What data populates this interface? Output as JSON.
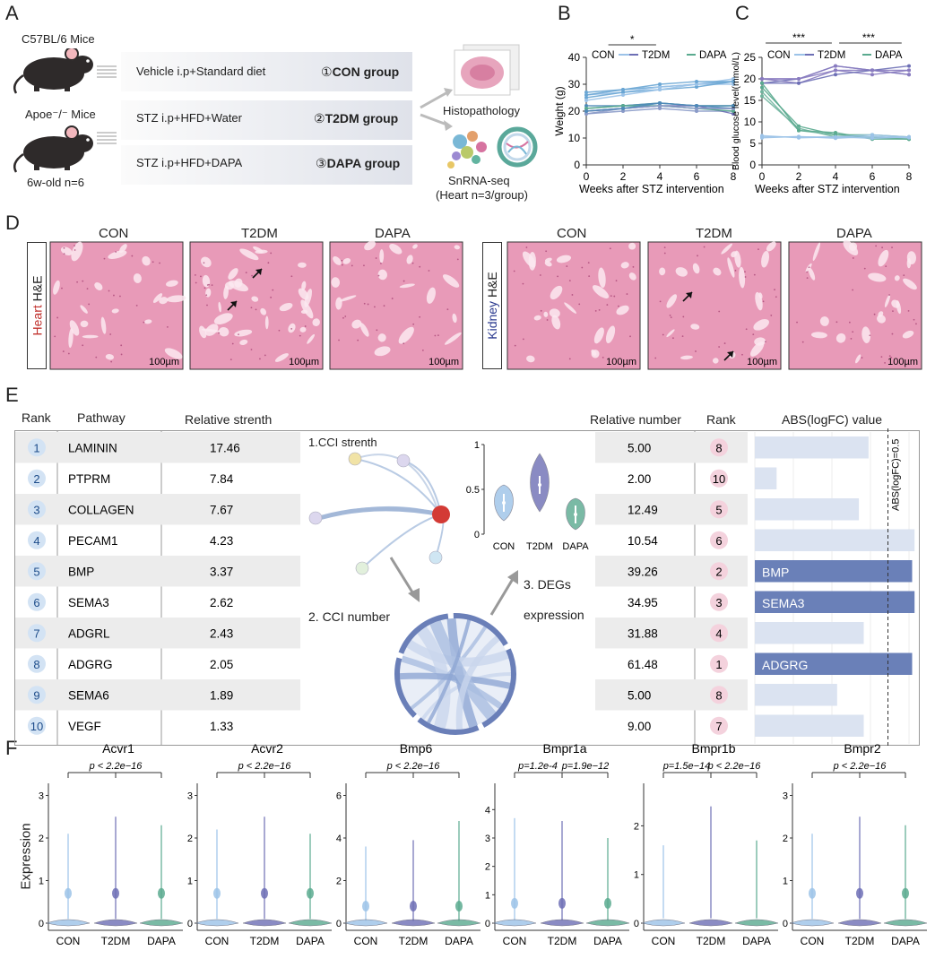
{
  "panels": {
    "A": "A",
    "B": "B",
    "C": "C",
    "D": "D",
    "E": "E",
    "F": "F"
  },
  "panelA": {
    "mouse1": "C57BL/6 Mice",
    "mouse2": "Apoe⁻/⁻ Mice",
    "age": "6w-old n=6",
    "groups": [
      {
        "treatment": "Vehicle i.p+Standard diet",
        "num": "①",
        "name": "CON group"
      },
      {
        "treatment": "STZ i.p+HFD+Water",
        "num": "②",
        "name": "T2DM group"
      },
      {
        "treatment": "STZ i.p+HFD+DAPA",
        "num": "③",
        "name": "DAPA group"
      }
    ],
    "histo": "Histopathology",
    "snrna": "SnRNA-seq",
    "snrna_sub": "(Heart n=3/group)"
  },
  "panelB": {
    "ylabel": "Weight (g)",
    "xlabel": "Weeks after STZ   intervention",
    "star": "*",
    "legend": [
      "CON",
      "T2DM",
      "DAPA"
    ],
    "yticks": [
      "0",
      "10",
      "20",
      "30",
      "40"
    ],
    "xticks": [
      "0",
      "2",
      "4",
      "6",
      "8"
    ]
  },
  "panelC": {
    "ylabel": "Blood glucose level(mmol/L)",
    "xlabel": "Weeks after STZ   intervention",
    "star1": "***",
    "star2": "***",
    "legend": [
      "CON",
      "T2DM",
      "DAPA"
    ],
    "yticks": [
      "0",
      "5",
      "10",
      "15",
      "20",
      "25"
    ],
    "xticks": [
      "0",
      "2",
      "4",
      "6",
      "8"
    ]
  },
  "panelD": {
    "groups": [
      "CON",
      "T2DM",
      "DAPA"
    ],
    "heart_label_red": "Heart",
    "heart_label": " H&E",
    "kidney_label_blue": "Kidney",
    "kidney_label": " H&E",
    "scale": "100µm"
  },
  "panelE": {
    "col_rank": "Rank",
    "col_pathway": "Pathway",
    "col_strength": "Relative strenth",
    "col_number": "Relative number",
    "col_rank2": "Rank",
    "col_abs": "ABS(logFC) value",
    "cci_strength": "1.CCI strenth",
    "cci_number": "2. CCI number",
    "degs": "3. DEGs",
    "degs2": "expression",
    "violin_x": [
      "CON",
      "T2DM",
      "DAPA"
    ],
    "violin_yticks": [
      "0",
      "0.5",
      "1"
    ],
    "threshold_label": "ABS(logFC)=0.5",
    "rows": [
      {
        "rank": "1",
        "pathway": "LAMININ",
        "strength": "17.46",
        "number": "5.00",
        "rank2": "8",
        "abs": 0.47,
        "label": ""
      },
      {
        "rank": "2",
        "pathway": "PTPRM",
        "strength": "7.84",
        "number": "2.00",
        "rank2": "10",
        "abs": 0.09,
        "label": ""
      },
      {
        "rank": "3",
        "pathway": "COLLAGEN",
        "strength": "7.67",
        "number": "12.49",
        "rank2": "5",
        "abs": 0.43,
        "label": ""
      },
      {
        "rank": "4",
        "pathway": "PECAM1",
        "strength": "4.23",
        "number": "10.54",
        "rank2": "6",
        "abs": 0.66,
        "label": ""
      },
      {
        "rank": "5",
        "pathway": "BMP",
        "strength": "3.37",
        "number": "39.26",
        "rank2": "2",
        "abs": 0.65,
        "label": "BMP"
      },
      {
        "rank": "6",
        "pathway": "SEMA3",
        "strength": "2.62",
        "number": "34.95",
        "rank2": "3",
        "abs": 0.66,
        "label": "SEMA3"
      },
      {
        "rank": "7",
        "pathway": "ADGRL",
        "strength": "2.43",
        "number": "31.88",
        "rank2": "4",
        "abs": 0.45,
        "label": ""
      },
      {
        "rank": "8",
        "pathway": "ADGRG",
        "strength": "2.05",
        "number": "61.48",
        "rank2": "1",
        "abs": 0.65,
        "label": "ADGRG"
      },
      {
        "rank": "9",
        "pathway": "SEMA6",
        "strength": "1.89",
        "number": "5.00",
        "rank2": "8",
        "abs": 0.34,
        "label": ""
      },
      {
        "rank": "10",
        "pathway": "VEGF",
        "strength": "1.33",
        "number": "9.00",
        "rank2": "7",
        "abs": 0.45,
        "label": ""
      }
    ]
  },
  "panelF": {
    "ylabel": "Expression",
    "groups": [
      "CON",
      "T2DM",
      "DAPA"
    ],
    "plots": [
      {
        "gene": "Acvr1",
        "p1": "p < 2.2e−16",
        "p2": "",
        "yticks": [
          "0",
          "1",
          "2",
          "3"
        ],
        "ymax": 3.2
      },
      {
        "gene": "Acvr2",
        "p1": "p < 2.2e−16",
        "p2": "",
        "yticks": [
          "0",
          "1",
          "2",
          "3"
        ],
        "ymax": 3.2
      },
      {
        "gene": "Bmp6",
        "p1": "p < 2.2e−16",
        "p2": "",
        "yticks": [
          "0",
          "2",
          "4",
          "6"
        ],
        "ymax": 6.4
      },
      {
        "gene": "Bmpr1a",
        "p1": "p=1.2e-4",
        "p2": "p=1.9e−12",
        "yticks": [
          "0",
          "1",
          "2",
          "3",
          "4"
        ],
        "ymax": 4.8
      },
      {
        "gene": "Bmpr1b",
        "p1": "p=1.5e−14",
        "p2": "p < 2.2e−16",
        "yticks": [
          "0",
          "1",
          "2"
        ],
        "ymax": 2.8
      },
      {
        "gene": "Bmpr2",
        "p1": "p < 2.2e−16",
        "p2": "",
        "yticks": [
          "0",
          "1",
          "2",
          "3"
        ],
        "ymax": 3.2
      }
    ]
  },
  "colors": {
    "con": "#9cc3e8",
    "t2dm": "#6d6fb5",
    "dapa": "#5aaa8f",
    "bar_light": "#dbe3f1",
    "bar_dark": "#6a80b8",
    "rank_blue": "#d3e3f4",
    "rank_pink": "#f4d2dd",
    "he_pink": "#e89ab8",
    "red_node": "#d33a35"
  }
}
